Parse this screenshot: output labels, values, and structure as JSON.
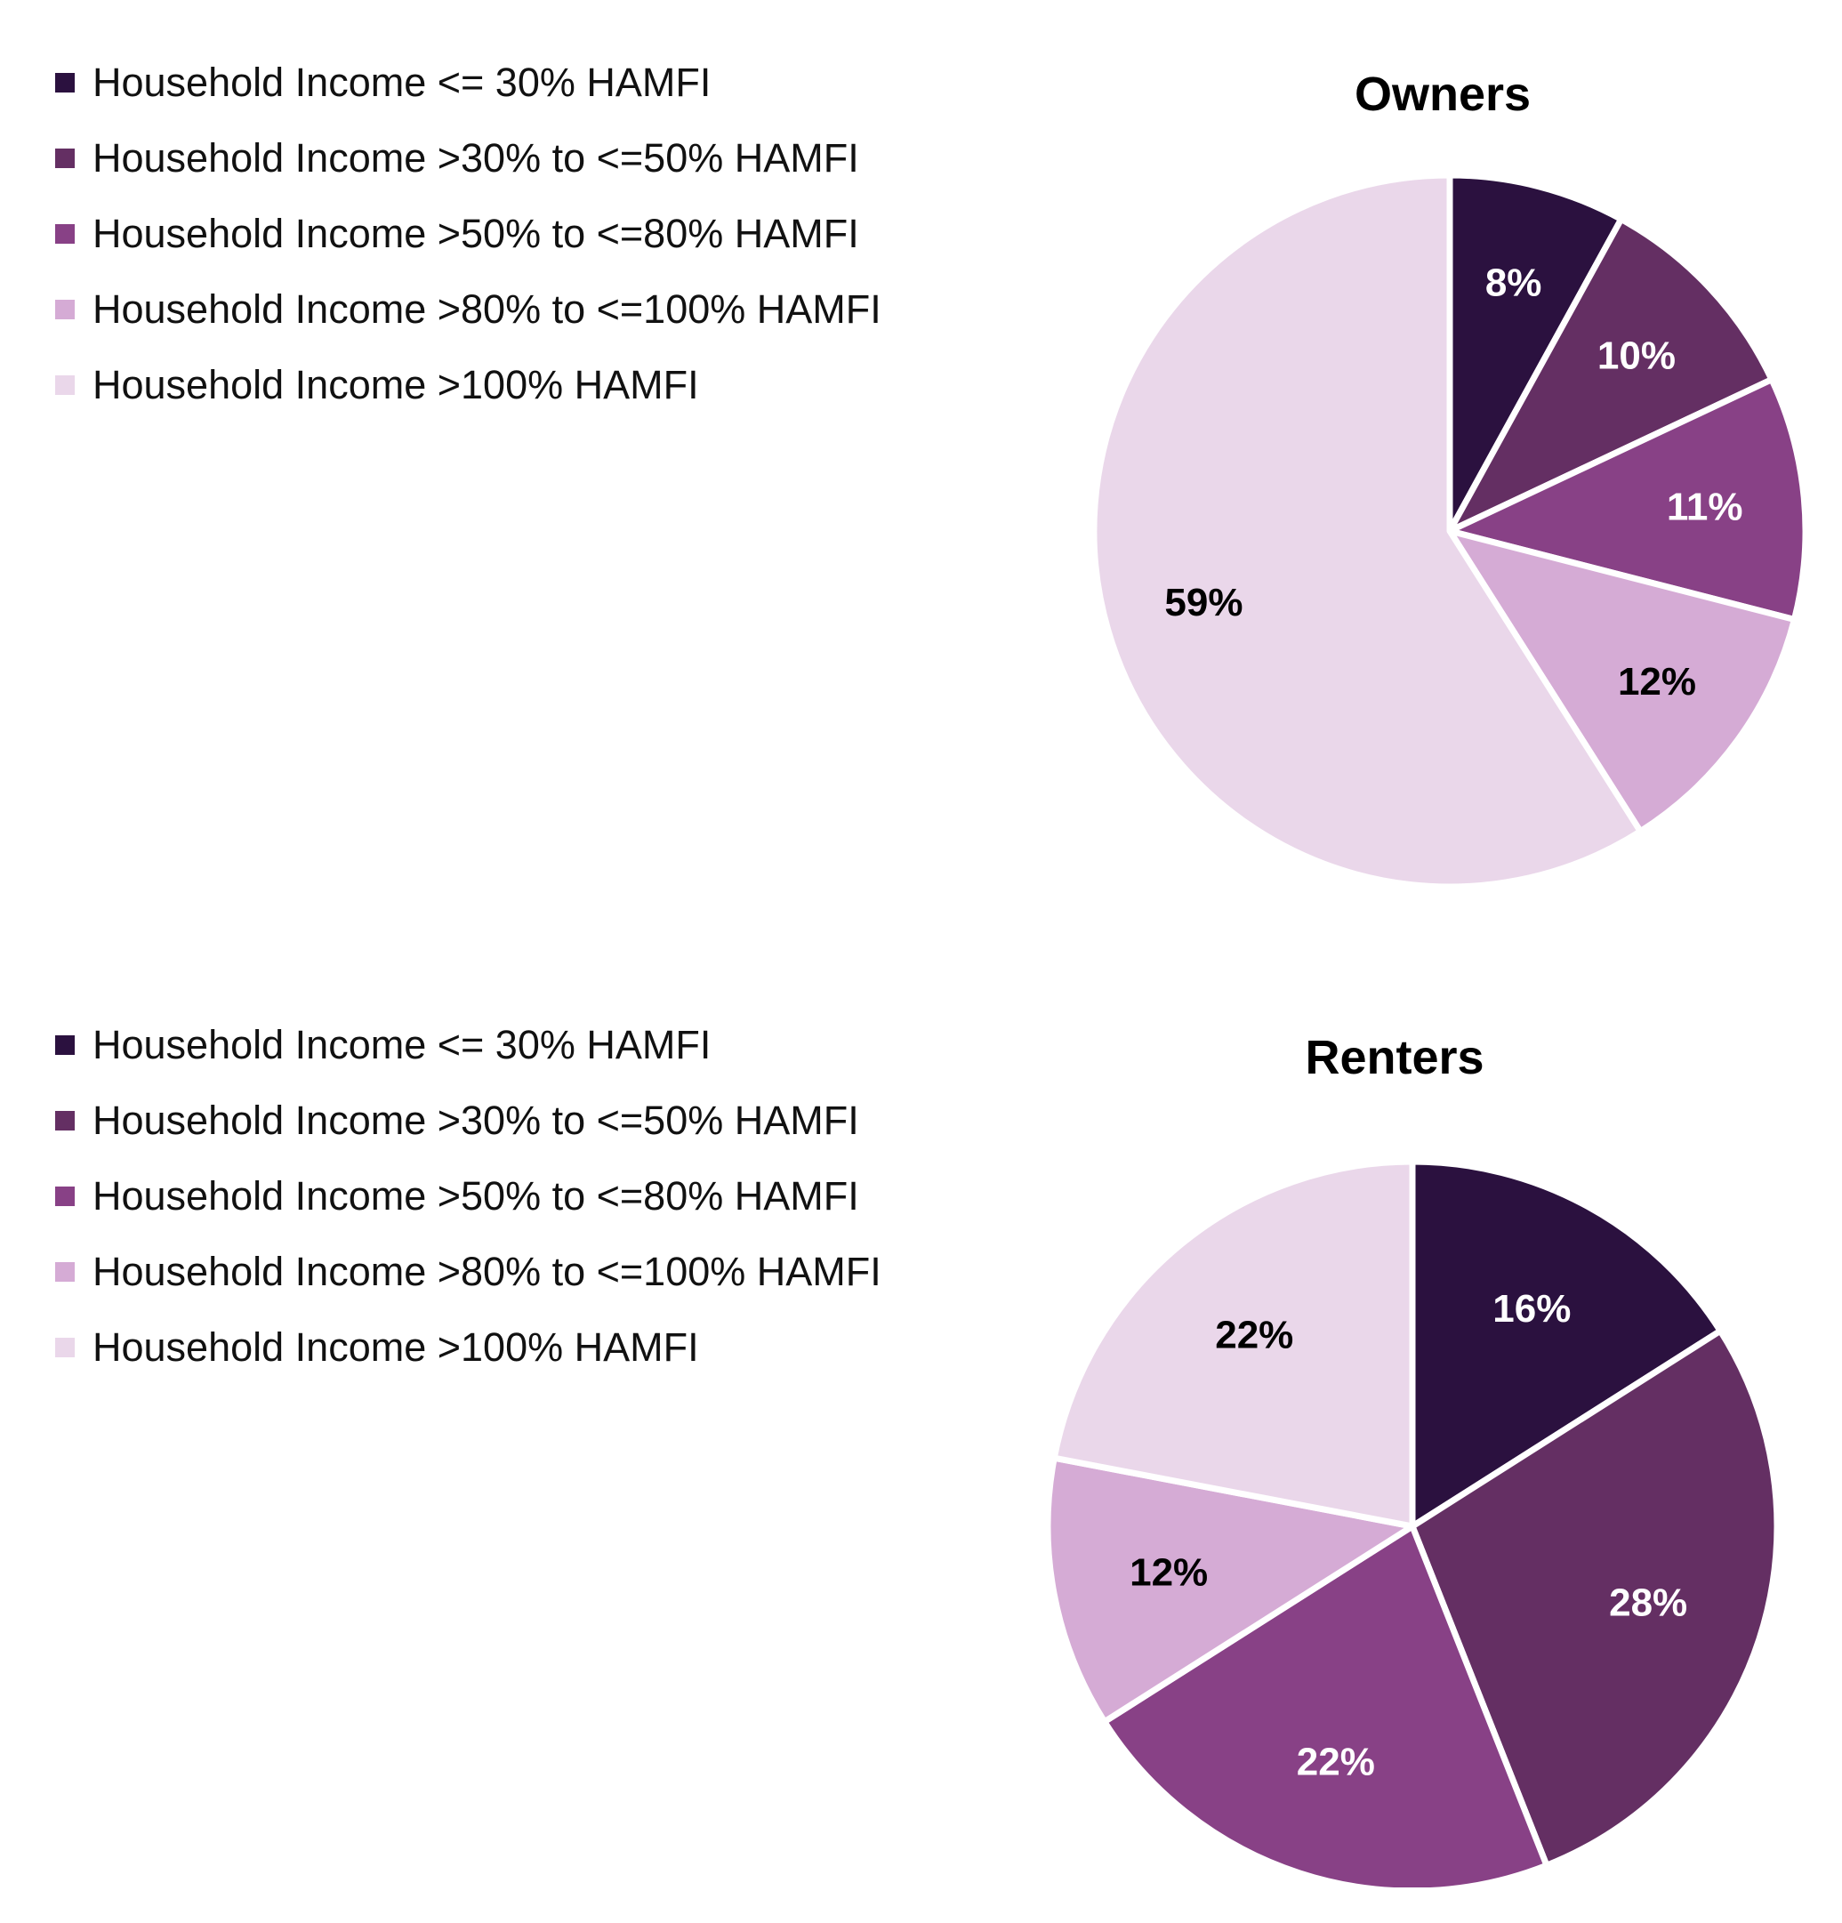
{
  "chart_data": [
    {
      "type": "pie",
      "title": "Owners",
      "categories": [
        "Household Income <= 30% HAMFI",
        "Household Income >30% to <=50% HAMFI",
        "Household Income >50% to <=80% HAMFI",
        "Household Income >80% to <=100% HAMFI",
        "Household Income >100% HAMFI"
      ],
      "values": [
        8,
        10,
        11,
        12,
        59
      ],
      "data_labels": [
        "8%",
        "10%",
        "11%",
        "12%",
        "59%"
      ],
      "colors": [
        "#2b113f",
        "#642f63",
        "#884186",
        "#d5abd5",
        "#ead7ea"
      ],
      "label_colors": [
        "#ffffff",
        "#ffffff",
        "#ffffff",
        "#000000",
        "#000000"
      ],
      "legend_position": "top-left"
    },
    {
      "type": "pie",
      "title": "Renters",
      "categories": [
        "Household Income <= 30% HAMFI",
        "Household Income >30% to <=50% HAMFI",
        "Household Income >50% to <=80% HAMFI",
        "Household Income >80% to <=100% HAMFI",
        "Household Income >100% HAMFI"
      ],
      "values": [
        16,
        28,
        22,
        12,
        22
      ],
      "data_labels": [
        "16%",
        "28%",
        "22%",
        "12%",
        "22%"
      ],
      "colors": [
        "#2b113f",
        "#642f63",
        "#884186",
        "#d5abd5",
        "#ead7ea"
      ],
      "label_colors": [
        "#ffffff",
        "#ffffff",
        "#ffffff",
        "#000000",
        "#000000"
      ],
      "legend_position": "top-left"
    }
  ]
}
